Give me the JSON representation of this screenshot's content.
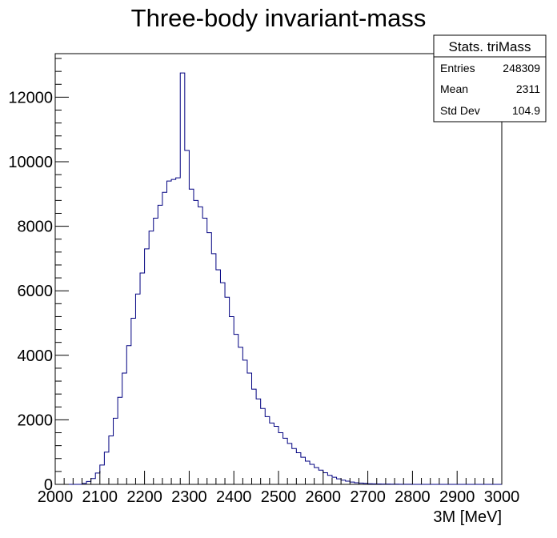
{
  "chart_data": {
    "type": "bar",
    "title": "Three-body invariant-mass",
    "xlabel": "3M [MeV]",
    "ylabel": "",
    "xlim": [
      2000,
      3000
    ],
    "ylim": [
      0,
      13350
    ],
    "x_ticks": [
      2000,
      2100,
      2200,
      2300,
      2400,
      2500,
      2600,
      2700,
      2800,
      2900,
      3000
    ],
    "y_ticks": [
      0,
      2000,
      4000,
      6000,
      8000,
      10000,
      12000
    ],
    "grid": false,
    "bin_width": 10,
    "bins_start": 2000,
    "values": [
      0,
      0,
      0,
      0,
      0,
      0,
      30,
      90,
      180,
      350,
      600,
      1000,
      1500,
      2050,
      2700,
      3450,
      4300,
      5150,
      5900,
      6550,
      7300,
      7850,
      8250,
      8650,
      9050,
      9400,
      9450,
      9500,
      12750,
      10350,
      9150,
      8800,
      8600,
      8250,
      7800,
      7150,
      6650,
      6250,
      5800,
      5200,
      4650,
      4250,
      3850,
      3450,
      2950,
      2650,
      2350,
      2100,
      1900,
      1800,
      1600,
      1430,
      1270,
      1110,
      980,
      840,
      720,
      620,
      520,
      440,
      360,
      280,
      220,
      170,
      130,
      100,
      70,
      50,
      40,
      30,
      20,
      15,
      12,
      10,
      8,
      6,
      5,
      4,
      3,
      2,
      1,
      0,
      0,
      0,
      0,
      0,
      0,
      0,
      0,
      0,
      0,
      0,
      0,
      0,
      0,
      0,
      0,
      0,
      0,
      0
    ],
    "line_color": "#000080",
    "stats": {
      "header": "Stats. triMass",
      "rows": [
        {
          "label": "Entries",
          "value": "248309"
        },
        {
          "label": "Mean",
          "value": "2311"
        },
        {
          "label": "Std Dev",
          "value": "104.9"
        }
      ]
    }
  }
}
